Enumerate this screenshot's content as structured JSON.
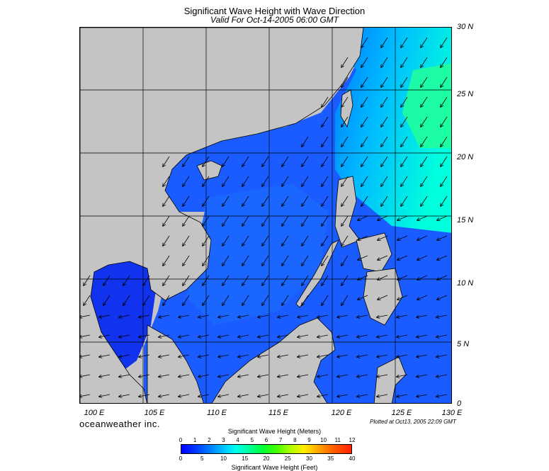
{
  "title": "Significant Wave Height with Wave Direction",
  "subtitle": "Valid For Oct-14-2005 06:00 GMT",
  "lat_labels": [
    "30 N",
    "25 N",
    "20 N",
    "15 N",
    "10 N",
    "5 N",
    "0"
  ],
  "lon_labels": [
    "100 E",
    "105 E",
    "110 E",
    "115 E",
    "120 E",
    "125 E",
    "130 E"
  ],
  "brand": "oceanweather inc.",
  "plotted": "Plotted at Oct13, 2005 22:09 GMT",
  "colorbar": {
    "meters_title": "Significant Wave Height (Meters)",
    "feet_title": "Significant Wave Height (Feet)",
    "meters_ticks": [
      "0",
      "1",
      "2",
      "3",
      "4",
      "5",
      "6",
      "7",
      "8",
      "9",
      "10",
      "11",
      "12"
    ],
    "feet_ticks": [
      "0",
      "5",
      "10",
      "15",
      "20",
      "25",
      "30",
      "35",
      "40"
    ]
  },
  "colors": {
    "land": "#c4c4c4",
    "sea_low": "#0033ff",
    "sea_mid": "#0099ff",
    "sea_high": "#00ffcc",
    "deep_trace": "#000055"
  }
}
